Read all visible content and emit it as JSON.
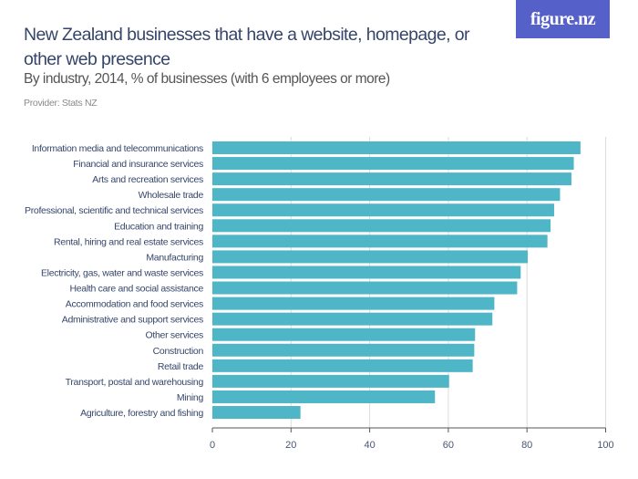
{
  "header": {
    "title": "New Zealand businesses that have a website, homepage, or other web presence",
    "subtitle": "By industry, 2014, % of businesses (with 6 employees or more)",
    "provider": "Provider: Stats NZ",
    "logo": "figure.nz"
  },
  "colors": {
    "bar": "#4eb6c6",
    "logo_bg": "#5560c8",
    "title": "#36466a"
  },
  "chart_data": {
    "type": "bar",
    "orientation": "horizontal",
    "title": "New Zealand businesses that have a website, homepage, or other web presence",
    "subtitle": "By industry, 2014, % of businesses (with 6 employees or more)",
    "categories": [
      "Information media and telecommunications",
      "Financial and insurance services",
      "Arts and recreation services",
      "Wholesale trade",
      "Professional, scientific and technical services",
      "Education and training",
      "Rental, hiring and real estate services",
      "Manufacturing",
      "Electricity, gas, water and waste services",
      "Health care and social assistance",
      "Accommodation and food services",
      "Administrative and support services",
      "Other services",
      "Construction",
      "Retail trade",
      "Transport, postal and warehousing",
      "Mining",
      "Agriculture, forestry and fishing"
    ],
    "values": [
      93.6,
      91.9,
      91.3,
      88.4,
      86.9,
      86.0,
      85.2,
      80.2,
      78.4,
      77.5,
      71.7,
      71.2,
      66.8,
      66.6,
      66.2,
      60.2,
      56.6,
      22.4
    ],
    "xlim": [
      0,
      100
    ],
    "xticks": [
      "0",
      "20",
      "40",
      "60",
      "80",
      "100"
    ],
    "grid": true,
    "legend": "none"
  }
}
